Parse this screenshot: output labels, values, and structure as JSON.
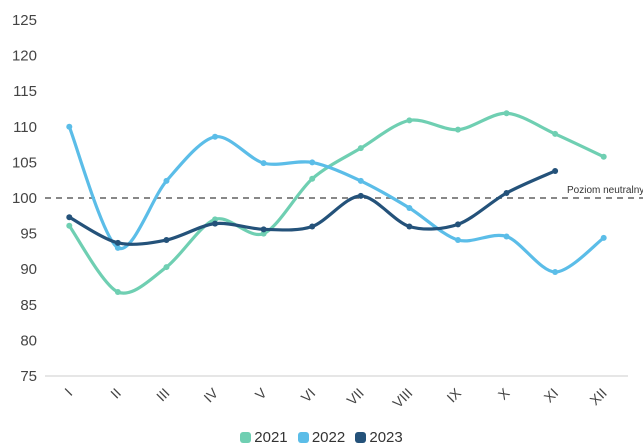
{
  "chart_data": {
    "type": "line",
    "title": "",
    "xlabel": "",
    "ylabel": "",
    "categories": [
      "I",
      "II",
      "III",
      "IV",
      "V",
      "VI",
      "VII",
      "VIII",
      "IX",
      "X",
      "XI",
      "XII"
    ],
    "ylim": [
      75,
      125
    ],
    "yticks": [
      75,
      80,
      85,
      90,
      95,
      100,
      105,
      110,
      115,
      120,
      125
    ],
    "grid": false,
    "legend_position": "bottom",
    "series": [
      {
        "name": "2021",
        "color": "#6fcfb2",
        "values": [
          96.1,
          86.8,
          90.3,
          97.0,
          95.0,
          102.7,
          107.0,
          110.9,
          109.6,
          111.9,
          109.0,
          105.8
        ]
      },
      {
        "name": "2022",
        "color": "#5bbde8",
        "values": [
          110.0,
          93.0,
          102.4,
          108.6,
          104.9,
          105.0,
          102.4,
          98.6,
          94.1,
          94.6,
          89.6,
          94.4
        ]
      },
      {
        "name": "2023",
        "color": "#24527a",
        "values": [
          97.3,
          93.7,
          94.1,
          96.4,
          95.6,
          96.0,
          100.3,
          96.0,
          96.3,
          100.7,
          103.8,
          null
        ]
      }
    ],
    "reference_line": {
      "value": 100,
      "label": "Poziom neutralny",
      "color": "#888888"
    }
  }
}
